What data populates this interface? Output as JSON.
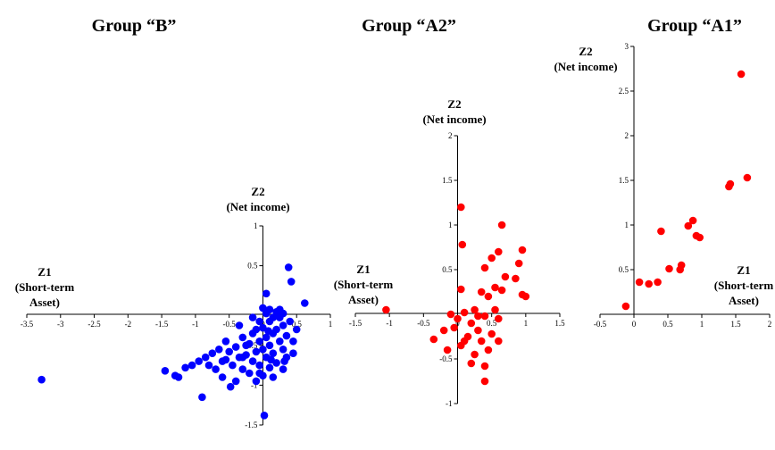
{
  "chart_data": [
    {
      "type": "scatter",
      "title": "Group “B”",
      "xlabel": [
        "Z1",
        "(Short-term",
        "Asset)"
      ],
      "ylabel": [
        "Z2",
        "(Net income)"
      ],
      "color": "#0000ff",
      "xlim": [
        -3.5,
        1
      ],
      "ylim": [
        -1.5,
        1
      ],
      "xticks": [
        -3.5,
        -3,
        -2.5,
        -2,
        -1.5,
        -1,
        -0.5,
        0,
        0.5,
        1
      ],
      "yticks": [
        -1.5,
        -1,
        -0.5,
        0.5,
        1
      ],
      "xtick_labels": [
        "-3.5",
        "-3",
        "-2.5",
        "-2",
        "-1.5",
        "-1",
        "-0.5",
        "0",
        "0.5",
        "1"
      ],
      "ytick_labels": [
        "-1.5",
        "-1",
        "-0.5",
        "0.5",
        "1"
      ],
      "points": [
        [
          -3.28,
          -0.93
        ],
        [
          0.38,
          0.48
        ],
        [
          0.42,
          0.3
        ],
        [
          0.62,
          0.03
        ],
        [
          0.05,
          0.15
        ],
        [
          0.0,
          -0.03
        ],
        [
          0.1,
          -0.05
        ],
        [
          0.2,
          -0.08
        ],
        [
          0.3,
          -0.1
        ],
        [
          0.05,
          -0.1
        ],
        [
          0.15,
          -0.15
        ],
        [
          0.25,
          -0.15
        ],
        [
          0.4,
          -0.2
        ],
        [
          -0.05,
          -0.2
        ],
        [
          0.1,
          -0.2
        ],
        [
          0.3,
          -0.25
        ],
        [
          0.0,
          -0.28
        ],
        [
          0.2,
          -0.3
        ],
        [
          -0.1,
          -0.3
        ],
        [
          0.5,
          -0.3
        ],
        [
          0.15,
          -0.35
        ],
        [
          -0.15,
          -0.35
        ],
        [
          0.35,
          -0.38
        ],
        [
          0.05,
          -0.4
        ],
        [
          -0.3,
          -0.4
        ],
        [
          -0.05,
          -0.45
        ],
        [
          0.25,
          -0.45
        ],
        [
          0.45,
          -0.45
        ],
        [
          -0.2,
          -0.48
        ],
        [
          0.1,
          -0.5
        ],
        [
          -0.4,
          -0.52
        ],
        [
          0.0,
          -0.55
        ],
        [
          0.3,
          -0.55
        ],
        [
          -0.1,
          -0.58
        ],
        [
          -0.5,
          -0.58
        ],
        [
          0.15,
          -0.6
        ],
        [
          -0.25,
          -0.62
        ],
        [
          0.05,
          -0.65
        ],
        [
          -0.35,
          -0.65
        ],
        [
          0.35,
          -0.65
        ],
        [
          -0.55,
          -0.68
        ],
        [
          -0.15,
          -0.7
        ],
        [
          0.2,
          -0.72
        ],
        [
          -0.05,
          -0.75
        ],
        [
          -0.45,
          -0.75
        ],
        [
          0.1,
          -0.78
        ],
        [
          -0.3,
          -0.8
        ],
        [
          -0.7,
          -0.8
        ],
        [
          0.3,
          -0.8
        ],
        [
          -0.2,
          -0.85
        ],
        [
          0.0,
          -0.88
        ],
        [
          -0.6,
          -0.9
        ],
        [
          0.15,
          -0.9
        ],
        [
          -0.1,
          -0.95
        ],
        [
          -0.4,
          -0.95
        ],
        [
          -0.25,
          -0.5
        ],
        [
          -0.55,
          -0.45
        ],
        [
          -0.65,
          -0.55
        ],
        [
          -0.75,
          -0.6
        ],
        [
          -0.85,
          -0.65
        ],
        [
          -0.95,
          -0.7
        ],
        [
          -1.05,
          -0.75
        ],
        [
          -1.15,
          -0.78
        ],
        [
          -0.8,
          -0.75
        ],
        [
          -0.6,
          -0.7
        ],
        [
          -1.45,
          -0.82
        ],
        [
          -1.3,
          -0.88
        ],
        [
          -1.25,
          -0.9
        ],
        [
          -0.9,
          -1.15
        ],
        [
          -0.48,
          -1.02
        ],
        [
          0.02,
          -1.38
        ],
        [
          -0.3,
          -0.65
        ],
        [
          0.45,
          -0.6
        ],
        [
          0.25,
          -0.05
        ],
        [
          -0.15,
          -0.15
        ],
        [
          0.32,
          -0.7
        ],
        [
          -0.05,
          -0.85
        ],
        [
          0.08,
          -0.32
        ],
        [
          -0.35,
          -0.25
        ],
        [
          0.12,
          -0.68
        ]
      ]
    },
    {
      "type": "scatter",
      "title": "Group “A2”",
      "xlabel": [
        "Z1",
        "(Short-term",
        "Asset)"
      ],
      "ylabel": [
        "Z2",
        "(Net income)"
      ],
      "color": "#ff0000",
      "xlim": [
        -1.5,
        1.5
      ],
      "ylim": [
        -1,
        2
      ],
      "xticks": [
        -1.5,
        -1,
        -0.5,
        0,
        0.5,
        1,
        1.5
      ],
      "yticks": [
        -1,
        -0.5,
        0.5,
        1,
        1.5,
        2
      ],
      "xtick_labels": [
        "-1.5",
        "-1",
        "-0.5",
        "0",
        "0.5",
        "1",
        "1.5"
      ],
      "ytick_labels": [
        "-1",
        "-0.5",
        "0.5",
        "1",
        "1.5",
        "2"
      ],
      "points": [
        [
          -1.05,
          0.05
        ],
        [
          0.05,
          1.2
        ],
        [
          0.07,
          0.78
        ],
        [
          0.65,
          1.0
        ],
        [
          0.5,
          0.63
        ],
        [
          0.85,
          0.4
        ],
        [
          0.95,
          0.72
        ],
        [
          0.4,
          0.52
        ],
        [
          0.6,
          0.7
        ],
        [
          0.9,
          0.57
        ],
        [
          0.05,
          0.28
        ],
        [
          0.35,
          0.25
        ],
        [
          0.55,
          0.3
        ],
        [
          0.7,
          0.42
        ],
        [
          0.95,
          0.22
        ],
        [
          0.45,
          0.2
        ],
        [
          0.65,
          0.27
        ],
        [
          0.25,
          0.05
        ],
        [
          0.1,
          0.02
        ],
        [
          0.4,
          -0.02
        ],
        [
          0.6,
          -0.05
        ],
        [
          0.0,
          -0.05
        ],
        [
          0.2,
          -0.1
        ],
        [
          -0.05,
          -0.15
        ],
        [
          0.3,
          -0.18
        ],
        [
          0.5,
          -0.22
        ],
        [
          0.15,
          -0.25
        ],
        [
          0.35,
          -0.3
        ],
        [
          0.6,
          -0.3
        ],
        [
          -0.35,
          -0.28
        ],
        [
          0.05,
          -0.35
        ],
        [
          0.45,
          -0.4
        ],
        [
          0.25,
          -0.45
        ],
        [
          -0.15,
          -0.4
        ],
        [
          0.4,
          -0.58
        ],
        [
          0.2,
          -0.55
        ],
        [
          0.4,
          -0.75
        ],
        [
          0.55,
          0.05
        ],
        [
          0.3,
          -0.02
        ],
        [
          0.1,
          -0.3
        ],
        [
          -0.2,
          -0.18
        ],
        [
          -0.1,
          0.0
        ],
        [
          1.0,
          0.2
        ]
      ]
    },
    {
      "type": "scatter",
      "title": "Group “A1”",
      "xlabel": [
        "Z1",
        "(Short-term",
        "Asset)"
      ],
      "ylabel": [
        "Z2",
        "(Net income)"
      ],
      "color": "#ff0000",
      "xlim": [
        -0.5,
        2
      ],
      "ylim": [
        0,
        3
      ],
      "xticks": [
        -0.5,
        0,
        0.5,
        1,
        1.5,
        2
      ],
      "yticks": [
        0.5,
        1,
        1.5,
        2,
        2.5,
        3
      ],
      "xtick_labels": [
        "-0.5",
        "0",
        "0.5",
        "1",
        "1.5",
        "2"
      ],
      "ytick_labels": [
        "0.5",
        "1",
        "1.5",
        "2",
        "2.5",
        "3"
      ],
      "points": [
        [
          -0.12,
          0.09
        ],
        [
          0.08,
          0.36
        ],
        [
          0.22,
          0.34
        ],
        [
          0.35,
          0.36
        ],
        [
          0.52,
          0.51
        ],
        [
          0.68,
          0.5
        ],
        [
          0.7,
          0.55
        ],
        [
          0.4,
          0.93
        ],
        [
          0.8,
          0.99
        ],
        [
          0.87,
          1.05
        ],
        [
          0.92,
          0.88
        ],
        [
          0.97,
          0.86
        ],
        [
          1.4,
          1.43
        ],
        [
          1.42,
          1.46
        ],
        [
          1.67,
          1.53
        ],
        [
          1.58,
          2.69
        ]
      ]
    }
  ]
}
